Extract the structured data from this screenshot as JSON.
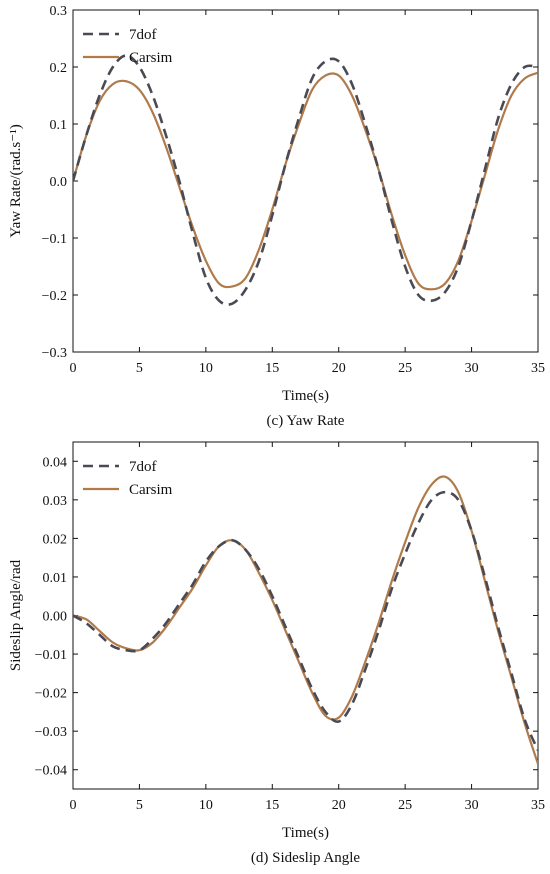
{
  "chart_data": [
    {
      "type": "line",
      "caption": "(c) Yaw Rate",
      "xlabel": "Time(s)",
      "ylabel": "Yaw Rate/(rad.s⁻¹)",
      "xlim": [
        0,
        35
      ],
      "ylim": [
        -0.3,
        0.3
      ],
      "xticks": [
        0,
        5,
        10,
        15,
        20,
        25,
        30,
        35
      ],
      "yticks": [
        -0.3,
        -0.2,
        -0.1,
        0.0,
        0.1,
        0.2,
        0.3
      ],
      "ytick_labels": [
        "−0.3",
        "−0.2",
        "−0.1",
        "0.0",
        "0.1",
        "0.2",
        "0.3"
      ],
      "legend_position": "top-left",
      "series": [
        {
          "name": "7dof",
          "style": "dashed",
          "color": "#4a4a55",
          "x": [
            0,
            1,
            2,
            3,
            4,
            5,
            6,
            7,
            8,
            9,
            10,
            11,
            12,
            13,
            14,
            15,
            16,
            17,
            18,
            19,
            20,
            21,
            22,
            23,
            24,
            25,
            26,
            27,
            28,
            29,
            30,
            31,
            32,
            33,
            34,
            35
          ],
          "y": [
            0,
            0.08,
            0.15,
            0.2,
            0.22,
            0.2,
            0.15,
            0.08,
            0.0,
            -0.09,
            -0.17,
            -0.21,
            -0.215,
            -0.19,
            -0.14,
            -0.06,
            0.03,
            0.11,
            0.18,
            0.21,
            0.21,
            0.17,
            0.1,
            0.02,
            -0.07,
            -0.15,
            -0.2,
            -0.21,
            -0.195,
            -0.15,
            -0.07,
            0.02,
            0.11,
            0.17,
            0.2,
            0.2
          ]
        },
        {
          "name": "Carsim",
          "style": "solid",
          "color": "#b07a4a",
          "x": [
            0,
            1,
            2,
            3,
            4,
            5,
            6,
            7,
            8,
            9,
            10,
            11,
            12,
            13,
            14,
            15,
            16,
            17,
            18,
            19,
            20,
            21,
            22,
            23,
            24,
            25,
            26,
            27,
            28,
            29,
            30,
            31,
            32,
            33,
            34,
            35
          ],
          "y": [
            0,
            0.08,
            0.14,
            0.17,
            0.175,
            0.16,
            0.12,
            0.06,
            -0.01,
            -0.08,
            -0.14,
            -0.18,
            -0.185,
            -0.17,
            -0.12,
            -0.05,
            0.03,
            0.1,
            0.16,
            0.185,
            0.185,
            0.15,
            0.09,
            0.02,
            -0.06,
            -0.13,
            -0.18,
            -0.19,
            -0.18,
            -0.14,
            -0.07,
            0.01,
            0.09,
            0.15,
            0.18,
            0.19
          ]
        }
      ]
    },
    {
      "type": "line",
      "caption": "(d) Sideslip Angle",
      "xlabel": "Time(s)",
      "ylabel": "Sideslip Angle/rad",
      "xlim": [
        0,
        35
      ],
      "ylim": [
        -0.045,
        0.045
      ],
      "xticks": [
        0,
        5,
        10,
        15,
        20,
        25,
        30,
        35
      ],
      "yticks": [
        -0.04,
        -0.03,
        -0.02,
        -0.01,
        0.0,
        0.01,
        0.02,
        0.03,
        0.04
      ],
      "ytick_labels": [
        "−0.04",
        "−0.03",
        "−0.02",
        "−0.01",
        "0.00",
        "0.01",
        "0.02",
        "0.03",
        "0.04"
      ],
      "legend_position": "top-left",
      "series": [
        {
          "name": "7dof",
          "style": "dashed",
          "color": "#4a4a55",
          "x": [
            0,
            1,
            2,
            3,
            4,
            5,
            6,
            7,
            8,
            9,
            10,
            11,
            12,
            13,
            14,
            15,
            16,
            17,
            18,
            19,
            20,
            21,
            22,
            23,
            24,
            25,
            26,
            27,
            28,
            29,
            30,
            31,
            32,
            33,
            34,
            35
          ],
          "y": [
            0,
            -0.002,
            -0.005,
            -0.008,
            -0.009,
            -0.009,
            -0.006,
            -0.002,
            0.003,
            0.008,
            0.014,
            0.018,
            0.0195,
            0.017,
            0.012,
            0.005,
            -0.003,
            -0.011,
            -0.019,
            -0.025,
            -0.0275,
            -0.023,
            -0.014,
            -0.004,
            0.007,
            0.016,
            0.024,
            0.03,
            0.032,
            0.03,
            0.022,
            0.01,
            -0.003,
            -0.015,
            -0.027,
            -0.035
          ]
        },
        {
          "name": "Carsim",
          "style": "solid",
          "color": "#b07a4a",
          "x": [
            0,
            1,
            2,
            3,
            4,
            5,
            6,
            7,
            8,
            9,
            10,
            11,
            12,
            13,
            14,
            15,
            16,
            17,
            18,
            19,
            20,
            21,
            22,
            23,
            24,
            25,
            26,
            27,
            28,
            29,
            30,
            31,
            32,
            33,
            34,
            35
          ],
          "y": [
            0,
            -0.001,
            -0.004,
            -0.007,
            -0.0085,
            -0.009,
            -0.007,
            -0.003,
            0.002,
            0.007,
            0.013,
            0.018,
            0.0195,
            0.017,
            0.011,
            0.004,
            -0.004,
            -0.012,
            -0.02,
            -0.026,
            -0.0265,
            -0.021,
            -0.012,
            -0.002,
            0.009,
            0.019,
            0.028,
            0.034,
            0.036,
            0.032,
            0.022,
            0.009,
            -0.004,
            -0.016,
            -0.028,
            -0.0385
          ]
        }
      ]
    }
  ]
}
